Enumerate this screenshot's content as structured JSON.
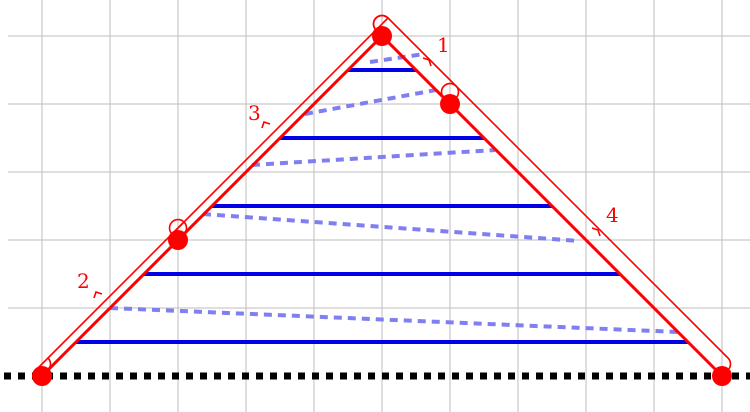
{
  "labels": {
    "one": "1",
    "two": "2",
    "three": "3",
    "four": "4"
  },
  "colors": {
    "grid": "#bdbdbd",
    "triangle": "#ff0000",
    "solid_lines": "#0000e6",
    "dashed_lines": "#7f7ff2",
    "baseline": "#000000",
    "vertex_dots": "#ff0000"
  }
}
